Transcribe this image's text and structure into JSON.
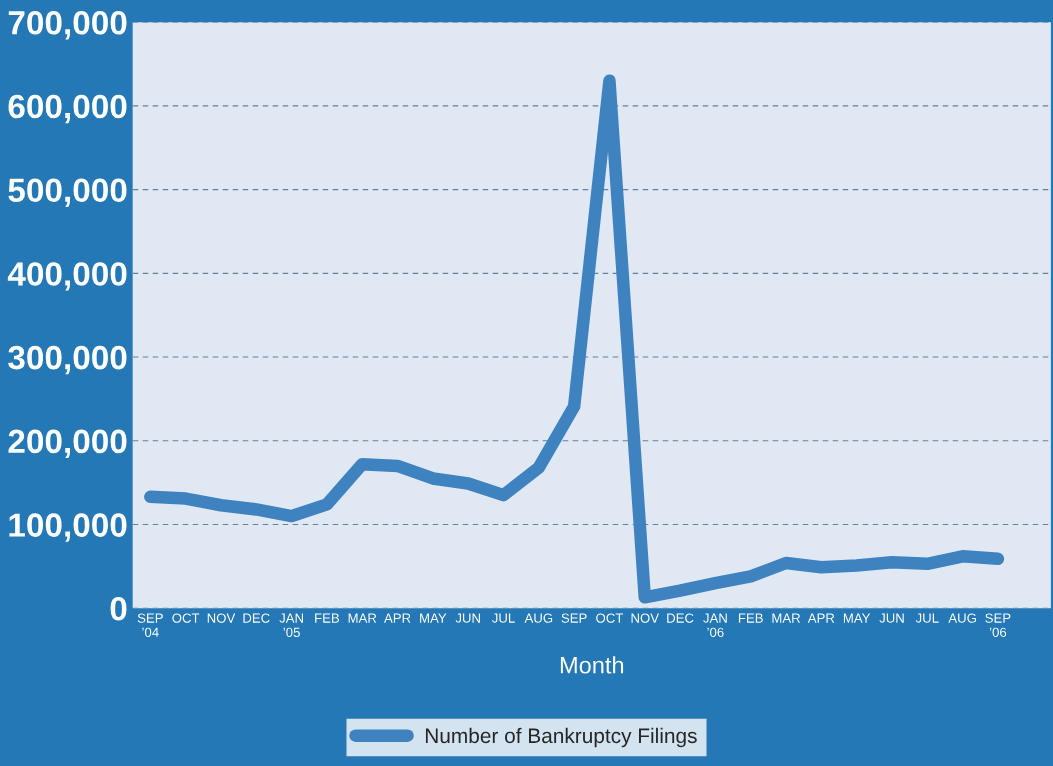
{
  "chart_data": {
    "type": "line",
    "xlabel": "Month",
    "categories": [
      "SEP\n’04",
      "OCT",
      "NOV",
      "DEC",
      "JAN\n’05",
      "FEB",
      "MAR",
      "APR",
      "MAY",
      "JUN",
      "JUL",
      "AUG",
      "SEP",
      "OCT",
      "NOV",
      "DEC",
      "JAN\n’06",
      "FEB",
      "MAR",
      "APR",
      "MAY",
      "JUN",
      "JUL",
      "AUG",
      "SEP\n’06"
    ],
    "series": [
      {
        "name": "Number of Bankruptcy Filings",
        "color": "#3f82c0",
        "values": [
          133000,
          131000,
          123000,
          118000,
          110000,
          124000,
          172000,
          170000,
          155000,
          149000,
          135000,
          168000,
          241000,
          630000,
          13000,
          21000,
          30000,
          38000,
          54000,
          49000,
          51000,
          55000,
          53000,
          62000,
          59000
        ]
      }
    ],
    "ylim": [
      0,
      700000
    ],
    "yticks": [
      {
        "value": 0,
        "label": "0"
      },
      {
        "value": 100000,
        "label": "100,000"
      },
      {
        "value": 200000,
        "label": "200,000"
      },
      {
        "value": 300000,
        "label": "300,000"
      },
      {
        "value": 400000,
        "label": "400,000"
      },
      {
        "value": 500000,
        "label": "500,000"
      },
      {
        "value": 600000,
        "label": "600,000"
      },
      {
        "value": 700000,
        "label": "700,000"
      }
    ],
    "grid": "y",
    "legend": "bottom",
    "marker": "none",
    "line_style": "solid"
  }
}
